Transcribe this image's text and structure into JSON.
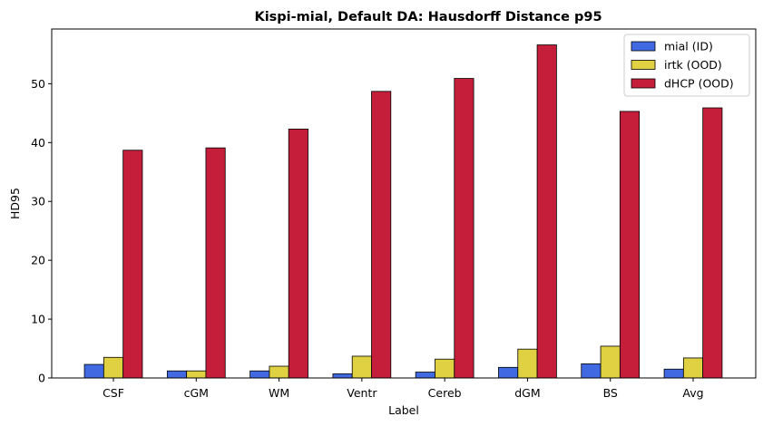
{
  "chart_data": {
    "type": "bar",
    "title": "Kispi-mial, Default DA: Hausdorff Distance p95",
    "xlabel": "Label",
    "ylabel": "HD95",
    "categories": [
      "CSF",
      "cGM",
      "WM",
      "Ventr",
      "Cereb",
      "dGM",
      "BS",
      "Avg"
    ],
    "ylim": [
      0,
      59.3
    ],
    "yticks": [
      0,
      10,
      20,
      30,
      40,
      50
    ],
    "grid": false,
    "legend_position": "top-right",
    "series": [
      {
        "name": "mial (ID)",
        "color": "#4169e1",
        "values": [
          2.3,
          1.2,
          1.2,
          0.7,
          1.0,
          1.8,
          2.4,
          1.5
        ]
      },
      {
        "name": "irtk (OOD)",
        "color": "#e0d143",
        "values": [
          3.5,
          1.2,
          2.0,
          3.7,
          3.2,
          4.9,
          5.4,
          3.4
        ]
      },
      {
        "name": "dHCP (OOD)",
        "color": "#c41e3a",
        "values": [
          38.7,
          39.1,
          42.3,
          48.7,
          50.9,
          56.6,
          45.3,
          45.9
        ]
      }
    ]
  }
}
